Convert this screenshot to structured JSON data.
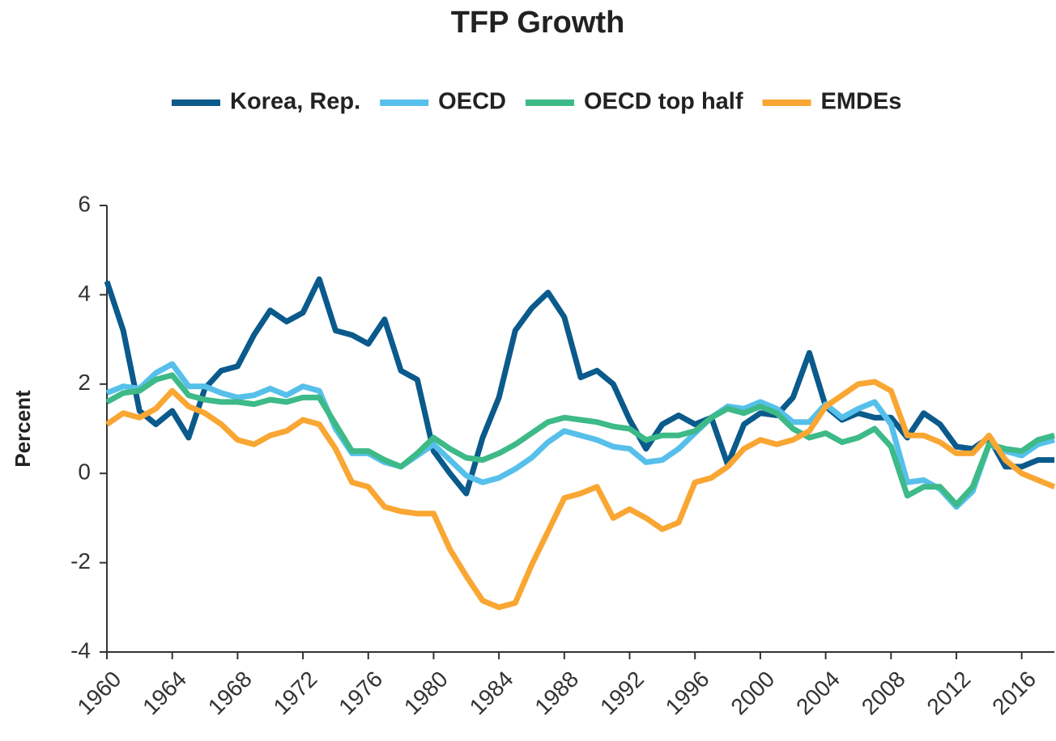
{
  "chart_data": {
    "type": "line",
    "title": "TFP Growth",
    "ylabel": "Percent",
    "x": [
      1960,
      1961,
      1962,
      1963,
      1964,
      1965,
      1966,
      1967,
      1968,
      1969,
      1970,
      1971,
      1972,
      1973,
      1974,
      1975,
      1976,
      1977,
      1978,
      1979,
      1980,
      1981,
      1982,
      1983,
      1984,
      1985,
      1986,
      1987,
      1988,
      1989,
      1990,
      1991,
      1992,
      1993,
      1994,
      1995,
      1996,
      1997,
      1998,
      1999,
      2000,
      2001,
      2002,
      2003,
      2004,
      2005,
      2006,
      2007,
      2008,
      2009,
      2010,
      2011,
      2012,
      2013,
      2014,
      2015,
      2016,
      2017,
      2018
    ],
    "series": [
      {
        "name": "Korea, Rep.",
        "color": "#0b5a8c",
        "values": [
          4.3,
          3.2,
          1.4,
          1.1,
          1.4,
          0.8,
          1.9,
          2.3,
          2.4,
          3.1,
          3.65,
          3.4,
          3.6,
          4.35,
          3.2,
          3.1,
          2.9,
          3.45,
          2.3,
          2.1,
          0.5,
          0.0,
          -0.45,
          0.8,
          1.7,
          3.2,
          3.7,
          4.05,
          3.5,
          2.15,
          2.3,
          2.0,
          1.2,
          0.55,
          1.1,
          1.3,
          1.1,
          1.25,
          0.2,
          1.1,
          1.35,
          1.3,
          1.7,
          2.7,
          1.5,
          1.2,
          1.35,
          1.25,
          1.25,
          0.8,
          1.35,
          1.1,
          0.6,
          0.55,
          0.8,
          0.15,
          0.15,
          0.3,
          0.3
        ]
      },
      {
        "name": "OECD",
        "color": "#56c0ea",
        "values": [
          1.8,
          1.95,
          1.9,
          2.25,
          2.45,
          1.95,
          1.95,
          1.8,
          1.7,
          1.75,
          1.9,
          1.75,
          1.95,
          1.85,
          1.0,
          0.45,
          0.45,
          0.25,
          0.15,
          0.4,
          0.65,
          0.3,
          -0.05,
          -0.2,
          -0.1,
          0.1,
          0.35,
          0.7,
          0.95,
          0.85,
          0.75,
          0.6,
          0.55,
          0.25,
          0.3,
          0.55,
          0.9,
          1.25,
          1.5,
          1.45,
          1.6,
          1.45,
          1.15,
          1.15,
          1.55,
          1.25,
          1.45,
          1.6,
          1.1,
          -0.2,
          -0.15,
          -0.35,
          -0.75,
          -0.4,
          0.65,
          0.5,
          0.4,
          0.65,
          0.75
        ]
      },
      {
        "name": "OECD top half",
        "color": "#3dba87",
        "values": [
          1.6,
          1.8,
          1.85,
          2.1,
          2.2,
          1.75,
          1.65,
          1.6,
          1.6,
          1.55,
          1.65,
          1.6,
          1.7,
          1.7,
          1.1,
          0.5,
          0.5,
          0.3,
          0.15,
          0.45,
          0.8,
          0.55,
          0.35,
          0.3,
          0.45,
          0.65,
          0.9,
          1.15,
          1.25,
          1.2,
          1.15,
          1.05,
          1.0,
          0.75,
          0.85,
          0.85,
          0.95,
          1.25,
          1.45,
          1.35,
          1.5,
          1.35,
          1.0,
          0.8,
          0.9,
          0.7,
          0.8,
          1.0,
          0.6,
          -0.5,
          -0.3,
          -0.3,
          -0.7,
          -0.3,
          0.65,
          0.55,
          0.5,
          0.75,
          0.85
        ]
      },
      {
        "name": "EMDEs",
        "color": "#f9a633",
        "values": [
          1.1,
          1.35,
          1.25,
          1.45,
          1.85,
          1.5,
          1.35,
          1.1,
          0.75,
          0.65,
          0.85,
          0.95,
          1.2,
          1.1,
          0.55,
          -0.2,
          -0.3,
          -0.75,
          -0.85,
          -0.9,
          -0.9,
          -1.7,
          -2.3,
          -2.85,
          -3.0,
          -2.9,
          -2.05,
          -1.3,
          -0.55,
          -0.45,
          -0.3,
          -1.0,
          -0.8,
          -1.0,
          -1.25,
          -1.1,
          -0.2,
          -0.1,
          0.15,
          0.55,
          0.75,
          0.65,
          0.75,
          0.95,
          1.5,
          1.75,
          2.0,
          2.05,
          1.85,
          0.85,
          0.85,
          0.7,
          0.45,
          0.45,
          0.85,
          0.3,
          0.0,
          -0.15,
          -0.3
        ]
      }
    ],
    "xlim": [
      1960,
      2018
    ],
    "xticks": [
      1960,
      1964,
      1968,
      1972,
      1976,
      1980,
      1984,
      1988,
      1992,
      1996,
      2000,
      2004,
      2008,
      2012,
      2016
    ],
    "ylim": [
      -4,
      6
    ],
    "yticks": [
      -4,
      -2,
      0,
      2,
      4,
      6
    ],
    "grid": false,
    "legend": "top"
  }
}
